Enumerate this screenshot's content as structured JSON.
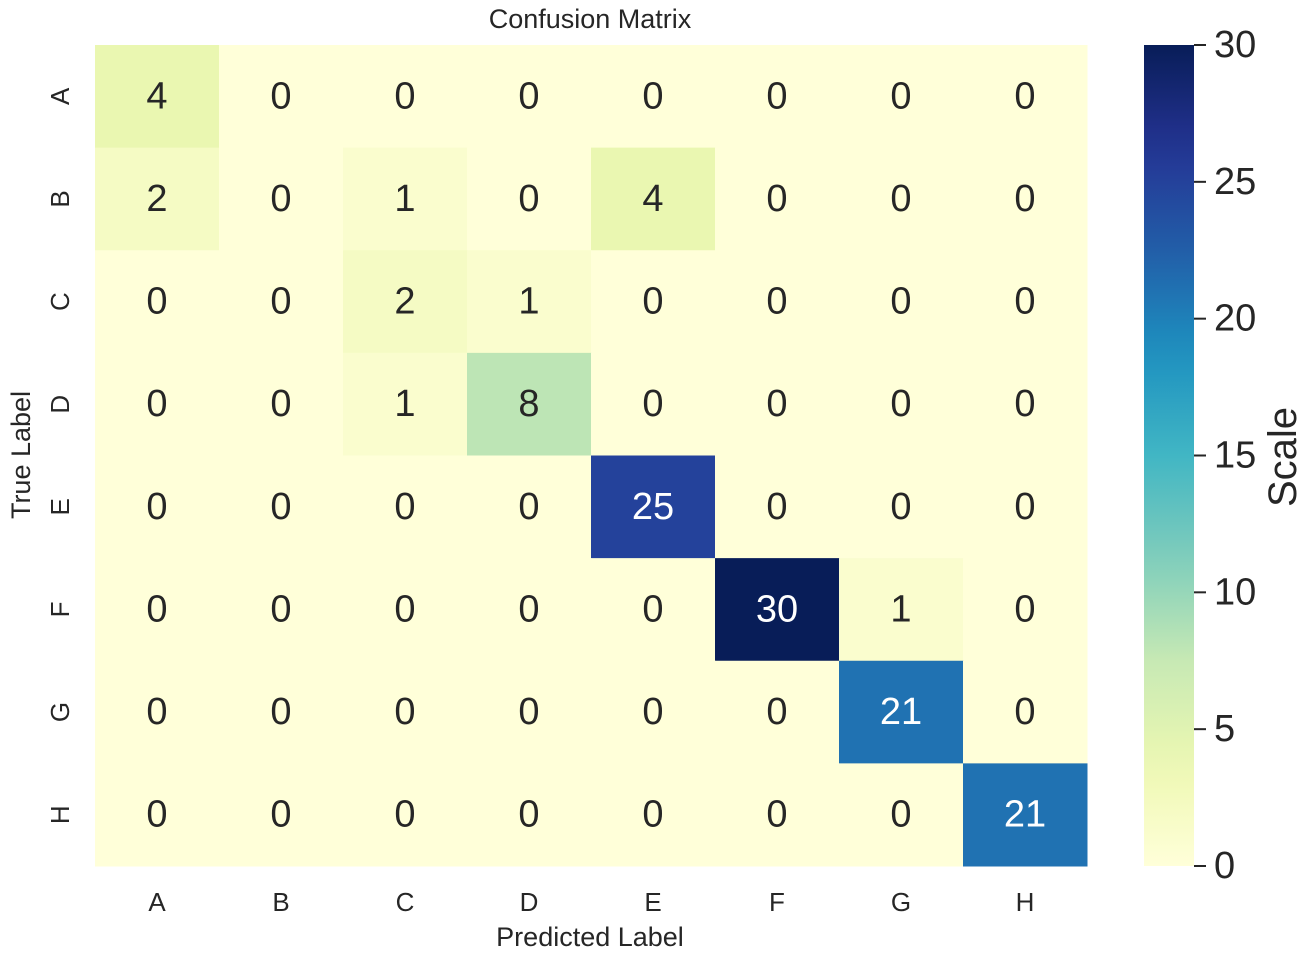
{
  "chart_data": {
    "type": "heatmap",
    "title": "Confusion Matrix",
    "xlabel": "Predicted Label",
    "ylabel": "True Label",
    "x_categories": [
      "A",
      "B",
      "C",
      "D",
      "E",
      "F",
      "G",
      "H"
    ],
    "y_categories": [
      "A",
      "B",
      "C",
      "D",
      "E",
      "F",
      "G",
      "H"
    ],
    "matrix": [
      [
        4,
        0,
        0,
        0,
        0,
        0,
        0,
        0
      ],
      [
        2,
        0,
        1,
        0,
        4,
        0,
        0,
        0
      ],
      [
        0,
        0,
        2,
        1,
        0,
        0,
        0,
        0
      ],
      [
        0,
        0,
        1,
        8,
        0,
        0,
        0,
        0
      ],
      [
        0,
        0,
        0,
        0,
        25,
        0,
        0,
        0
      ],
      [
        0,
        0,
        0,
        0,
        0,
        30,
        1,
        0
      ],
      [
        0,
        0,
        0,
        0,
        0,
        0,
        21,
        0
      ],
      [
        0,
        0,
        0,
        0,
        0,
        0,
        0,
        21
      ]
    ],
    "colormap": "YlGnBu",
    "vmin": 0,
    "vmax": 30,
    "colorbar": {
      "label": "Scale",
      "ticks": [
        0,
        5,
        10,
        15,
        20,
        25,
        30
      ]
    }
  }
}
